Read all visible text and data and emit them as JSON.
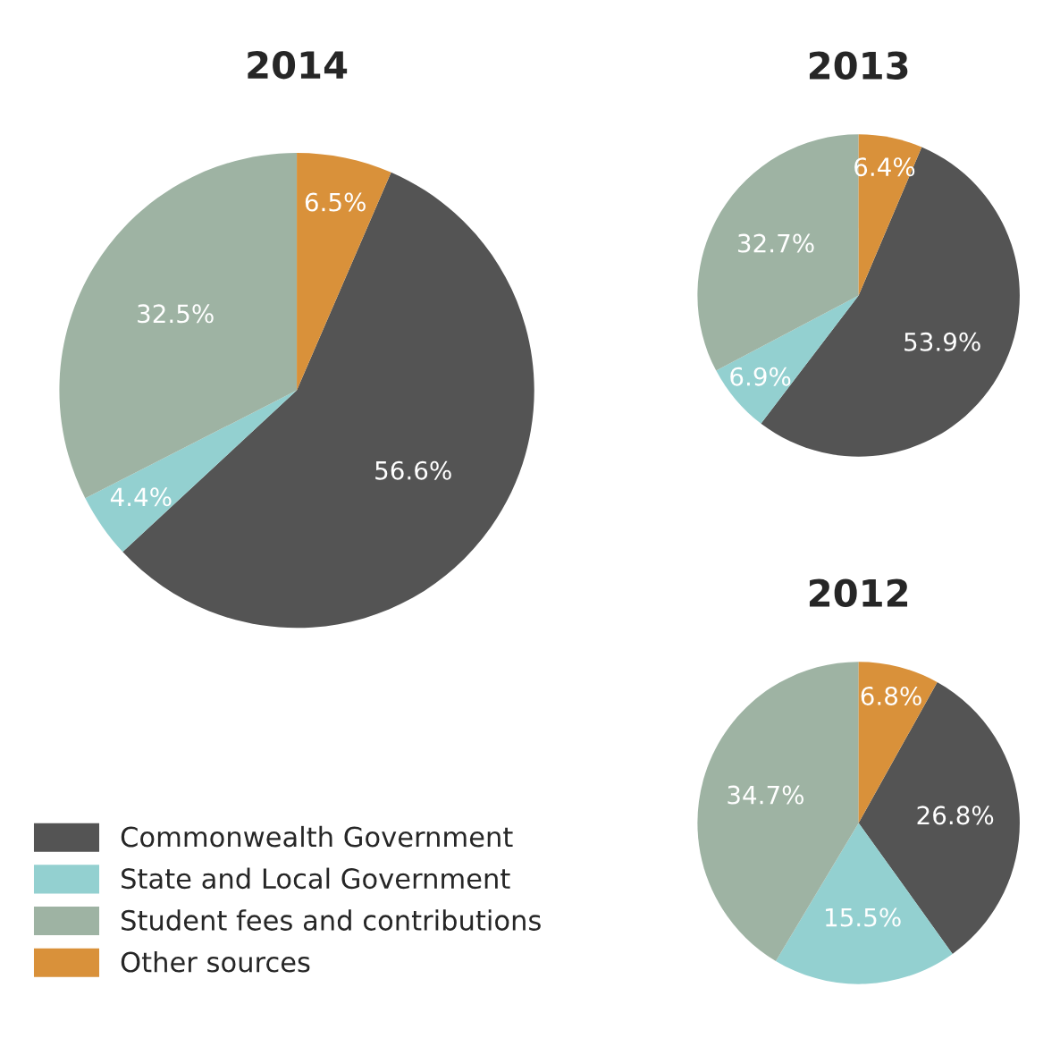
{
  "chart_data": [
    {
      "type": "pie",
      "title": "2014",
      "categories": [
        "Commonwealth Government",
        "State and Local Government",
        "Student fees and contributions",
        "Other sources"
      ],
      "values": [
        56.6,
        4.4,
        32.5,
        6.5
      ],
      "value_labels": [
        "56.6%",
        "4.4%",
        "32.5%",
        "6.5%"
      ],
      "colors": [
        "#545454",
        "#93d0d0",
        "#9eb3a3",
        "#d9913a"
      ],
      "legend": "bottom left"
    },
    {
      "type": "pie",
      "title": "2013",
      "values": [
        53.9,
        6.9,
        32.7,
        6.4
      ],
      "value_labels": [
        "53.9%",
        "6.9%",
        "32.7%",
        "6.4%"
      ],
      "colors": [
        "#545454",
        "#93d0d0",
        "#9eb3a3",
        "#d9913a"
      ]
    },
    {
      "type": "pie",
      "title": "2012",
      "values": [
        26.8,
        15.5,
        34.7,
        6.8
      ],
      "value_labels": [
        "26.8%",
        "15.5%",
        "34.7%",
        "6.8%"
      ],
      "colors": [
        "#545454",
        "#93d0d0",
        "#9eb3a3",
        "#d9913a"
      ]
    }
  ]
}
